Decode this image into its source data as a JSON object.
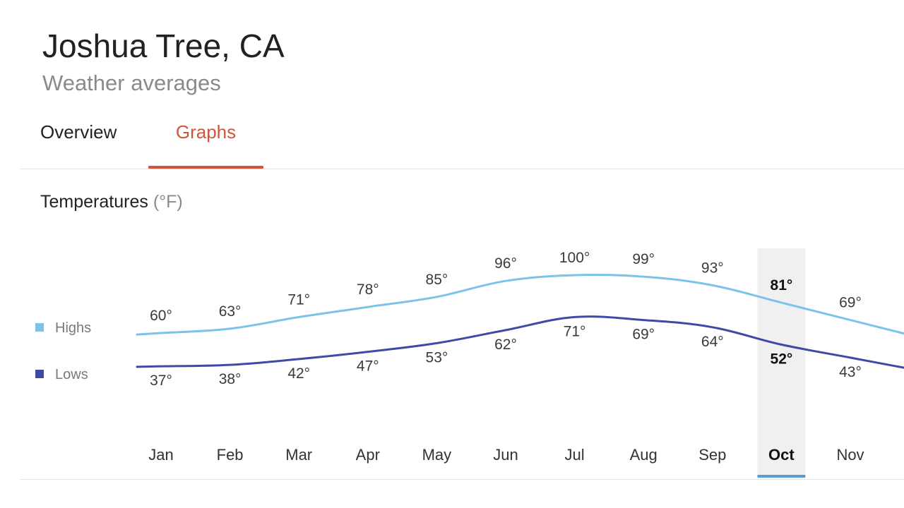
{
  "header": {
    "title": "Joshua Tree, CA",
    "subtitle": "Weather averages"
  },
  "tabs": [
    {
      "label": "Overview",
      "active": false
    },
    {
      "label": "Graphs",
      "active": true
    }
  ],
  "section": {
    "title": "Temperatures",
    "unit": "(°F)"
  },
  "colors": {
    "accent": "#d2553a",
    "highs": "#7cc3e8",
    "lows": "#3f4aa8",
    "selected_underline": "#5b9bd5",
    "selected_band": "#f0f0f0"
  },
  "chart_data": {
    "type": "line",
    "categories": [
      "Jan",
      "Feb",
      "Mar",
      "Apr",
      "May",
      "Jun",
      "Jul",
      "Aug",
      "Sep",
      "Oct",
      "Nov"
    ],
    "series": [
      {
        "name": "Highs",
        "values": [
          60,
          63,
          71,
          78,
          85,
          96,
          100,
          99,
          93,
          81,
          69
        ],
        "labels": [
          "60°",
          "63°",
          "71°",
          "78°",
          "85°",
          "96°",
          "100°",
          "99°",
          "93°",
          "81°",
          "69°"
        ]
      },
      {
        "name": "Lows",
        "values": [
          37,
          38,
          42,
          47,
          53,
          62,
          71,
          69,
          64,
          52,
          43
        ],
        "labels": [
          "37°",
          "38°",
          "42°",
          "47°",
          "53°",
          "62°",
          "71°",
          "69°",
          "64°",
          "52°",
          "43°"
        ]
      }
    ],
    "selected_category": "Oct",
    "legend_position": "left",
    "grid": false
  }
}
